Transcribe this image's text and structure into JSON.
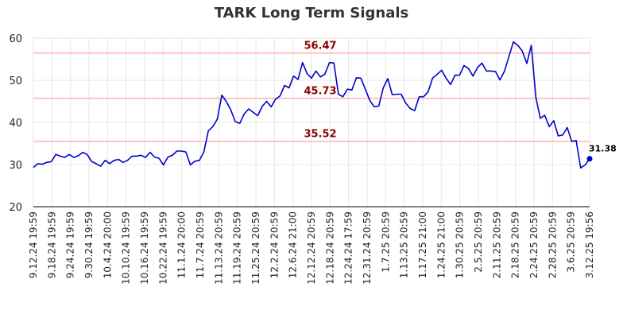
{
  "chart_data": {
    "type": "line",
    "title": "TARK Long Term Signals",
    "xlabel": "",
    "ylabel": "",
    "ylim": [
      20,
      60
    ],
    "yticks": [
      20,
      30,
      40,
      50,
      60
    ],
    "grid": true,
    "colors": {
      "line": "#0000cc",
      "ref_line": "#ffb3b3",
      "ref_label": "#8b0000",
      "grid": "#e6e6e6"
    },
    "x_tick_labels": [
      "9.12.24 19:59",
      "9.18.24 19:59",
      "9.24.24 19:59",
      "9.30.24 19:59",
      "10.4.24 20:00",
      "10.10.24 19:59",
      "10.16.24 19:59",
      "10.22.24 19:59",
      "11.1.24 20:00",
      "11.7.24 20:59",
      "11.13.24 20:59",
      "11.19.24 20:59",
      "11.25.24 20:59",
      "12.2.24 20:59",
      "12.6.24 21:00",
      "12.12.24 20:59",
      "12.18.24 20:59",
      "12.24.24 17:59",
      "12.31.24 20:59",
      "1.7.25 20:59",
      "1.13.25 20:59",
      "1.17.25 21:00",
      "1.24.25 21:00",
      "1.30.25 20:59",
      "2.5.25 20:59",
      "2.11.25 20:59",
      "2.18.25 20:59",
      "2.24.25 20:59",
      "2.28.25 20:59",
      "3.6.25 20:59",
      "3.12.25 19:56"
    ],
    "reference_lines": [
      {
        "value": 56.47,
        "label": "56.47"
      },
      {
        "value": 45.73,
        "label": "45.73"
      },
      {
        "value": 35.52,
        "label": "35.52"
      }
    ],
    "last_value_label": "31.38",
    "series": [
      {
        "values": [
          29.3,
          30.2,
          30.1,
          30.5,
          30.7,
          32.4,
          32.0,
          31.7,
          32.4,
          31.7,
          32.1,
          32.9,
          32.4,
          30.7,
          30.2,
          29.6,
          31.0,
          30.2,
          31.0,
          31.2,
          30.5,
          31.0,
          32.0,
          32.0,
          32.2,
          31.7,
          32.9,
          31.8,
          31.5,
          29.9,
          31.8,
          32.2,
          33.2,
          33.2,
          33.0,
          29.9,
          30.8,
          31.0,
          33.0,
          38.0,
          39.0,
          40.8,
          46.5,
          45.0,
          43.0,
          40.2,
          39.8,
          42.0,
          43.2,
          42.4,
          41.6,
          43.8,
          45.0,
          43.7,
          45.5,
          46.3,
          48.8,
          48.2,
          51.0,
          50.2,
          54.2,
          51.6,
          50.5,
          52.2,
          50.8,
          51.5,
          54.2,
          54.1,
          46.7,
          46.1,
          47.9,
          47.7,
          50.6,
          50.5,
          47.9,
          45.2,
          43.7,
          43.9,
          48.2,
          50.4,
          46.6,
          46.7,
          46.7,
          44.6,
          43.3,
          42.8,
          46.1,
          46.1,
          47.3,
          50.5,
          51.4,
          52.4,
          50.5,
          49.0,
          51.2,
          51.2,
          53.5,
          52.8,
          51.0,
          53.0,
          54.1,
          52.2,
          52.2,
          52.1,
          50.1,
          52.1,
          55.6,
          59.1,
          58.3,
          56.9,
          54.0,
          58.3,
          46.0,
          41.0,
          41.7,
          39.0,
          40.4,
          36.8,
          37.0,
          38.8,
          35.5,
          35.7,
          29.2,
          29.9,
          31.38
        ]
      }
    ]
  }
}
